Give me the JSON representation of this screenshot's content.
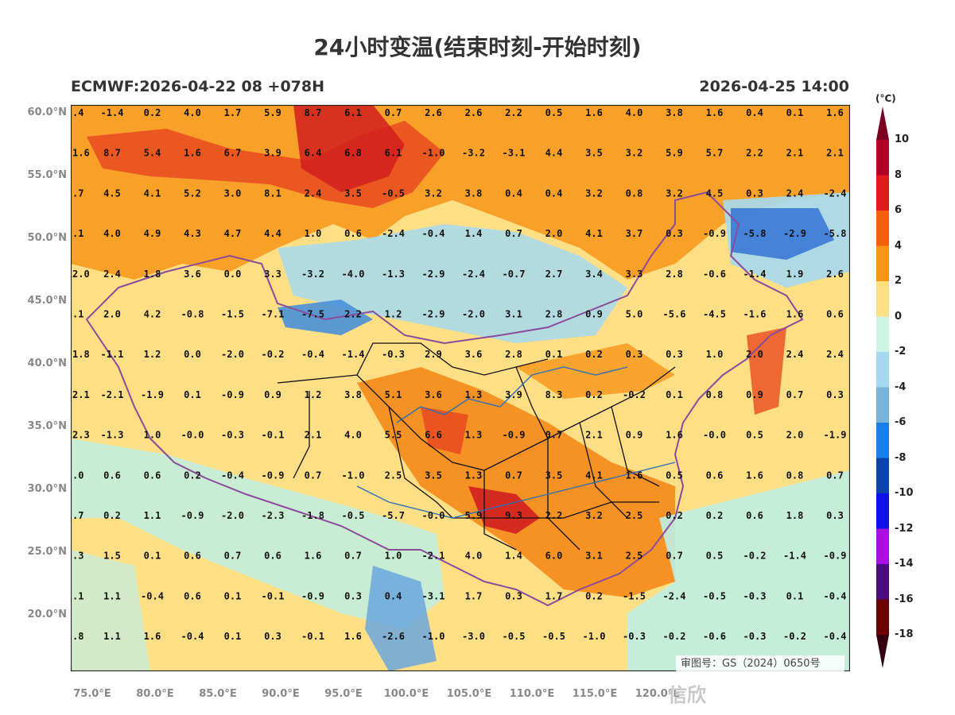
{
  "title": "24小时变温(结束时刻-开始时刻)",
  "model_run": "ECMWF:2026-04-22 08 +078H",
  "valid_time": "2026-04-25 14:00",
  "latitude_labels": [
    "60.0°N",
    "55.0°N",
    "50.0°N",
    "45.0°N",
    "40.0°N",
    "35.0°N",
    "30.0°N",
    "25.0°N",
    "20.0°N"
  ],
  "longitude_labels": [
    "75.0°E",
    "80.0°E",
    "85.0°E",
    "90.0°E",
    "95.0°E",
    "100.0°E",
    "105.0°E",
    "110.0°E",
    "115.0°E",
    "120.0°E"
  ],
  "legend": {
    "unit": "(°C)",
    "labels": [
      "10",
      "8",
      "6",
      "4",
      "2",
      "0",
      "-2",
      "-4",
      "-6",
      "-8",
      "-10",
      "-12",
      "-14",
      "-16",
      "-18"
    ],
    "colors": [
      "#7a0022",
      "#b10026",
      "#e31a1c",
      "#f06010",
      "#f79518",
      "#fedf86",
      "#cdf5e6",
      "#a6d9ef",
      "#78b4d9",
      "#1c7de6",
      "#0a46a8",
      "#1010ef",
      "#aa10dd",
      "#4b0c80",
      "#6f0000",
      "#340010"
    ]
  },
  "grid_values": [
    [
      "-1.4",
      "0.2",
      "4.0",
      "1.7",
      "5.9",
      "8.7",
      "6.1",
      "0.7",
      "2.6",
      "2.6",
      "2.2",
      "0.5",
      "1.6",
      "4.0",
      "3.8",
      "1.6",
      "0.4",
      "0.1",
      "1.6"
    ],
    [
      "8.7",
      "5.4",
      "1.6",
      "6.7",
      "3.9",
      "6.4",
      "6.8",
      "6.1",
      "-1.0",
      "-3.2",
      "-3.1",
      "4.4",
      "3.5",
      "3.2",
      "5.9",
      "5.7",
      "2.2",
      "2.1",
      "2.1"
    ],
    [
      "4.5",
      "4.1",
      "5.2",
      "3.0",
      "8.1",
      "2.4",
      "3.5",
      "-0.5",
      "3.2",
      "3.8",
      "0.4",
      "0.4",
      "3.2",
      "0.8",
      "3.2",
      "4.5",
      "0.3",
      "2.4",
      "-2.4"
    ],
    [
      "4.0",
      "4.9",
      "4.3",
      "4.7",
      "4.4",
      "1.0",
      "0.6",
      "-2.4",
      "-0.4",
      "1.4",
      "0.7",
      "2.0",
      "4.1",
      "3.7",
      "0.3",
      "-0.9",
      "-5.8",
      "-2.9",
      "-5.8"
    ],
    [
      "2.4",
      "1.8",
      "3.6",
      "0.0",
      "3.3",
      "-3.2",
      "-4.0",
      "-1.3",
      "-2.9",
      "-2.4",
      "-0.7",
      "2.7",
      "3.4",
      "3.3",
      "2.8",
      "-0.6",
      "-1.4",
      "1.9",
      "2.6"
    ],
    [
      "2.0",
      "4.2",
      "-0.8",
      "-1.5",
      "-7.1",
      "-7.5",
      "2.2",
      "1.2",
      "-2.9",
      "-2.0",
      "3.1",
      "2.8",
      "0.9",
      "5.0",
      "-5.6",
      "-4.5",
      "-1.6",
      "1.6",
      "0.6"
    ],
    [
      "-1.1",
      "1.2",
      "0.0",
      "-2.0",
      "-0.2",
      "-0.4",
      "-1.4",
      "-0.3",
      "2.9",
      "3.6",
      "2.8",
      "0.1",
      "0.2",
      "0.3",
      "0.3",
      "1.0",
      "2.0",
      "2.4",
      "2.4"
    ],
    [
      "-2.1",
      "-1.9",
      "0.1",
      "-0.9",
      "0.9",
      "1.2",
      "3.8",
      "5.1",
      "3.6",
      "1.3",
      "3.9",
      "8.3",
      "0.2",
      "-0.2",
      "0.1",
      "0.8",
      "0.9",
      "0.7",
      "0.3"
    ],
    [
      "-1.3",
      "1.0",
      "-0.0",
      "-0.3",
      "-0.1",
      "2.1",
      "4.0",
      "5.5",
      "6.6",
      "1.3",
      "-0.9",
      "0.7",
      "2.1",
      "0.9",
      "1.6",
      "-0.0",
      "0.5",
      "2.0",
      "-1.9"
    ],
    [
      "0.6",
      "0.6",
      "0.2",
      "-0.4",
      "-0.9",
      "0.7",
      "-1.0",
      "2.5",
      "3.5",
      "1.3",
      "0.7",
      "3.5",
      "4.1",
      "1.6",
      "0.5",
      "0.6",
      "1.6",
      "0.8",
      "0.7"
    ],
    [
      "0.2",
      "1.1",
      "-0.9",
      "-2.0",
      "-2.3",
      "-1.8",
      "-0.5",
      "-5.7",
      "-0.0",
      "5.9",
      "9.3",
      "2.2",
      "3.2",
      "2.5",
      "0.2",
      "0.2",
      "0.6",
      "1.8",
      "0.3"
    ],
    [
      "1.5",
      "0.1",
      "0.6",
      "0.7",
      "0.6",
      "1.6",
      "0.7",
      "1.0",
      "-2.1",
      "4.0",
      "1.4",
      "6.0",
      "3.1",
      "2.5",
      "0.7",
      "0.5",
      "-0.2",
      "-1.4",
      "-0.9"
    ],
    [
      "1.1",
      "-0.4",
      "0.6",
      "0.1",
      "-0.1",
      "-0.9",
      "0.3",
      "0.4",
      "-3.1",
      "1.7",
      "0.3",
      "1.7",
      "0.2",
      "-1.5",
      "-2.4",
      "-0.5",
      "-0.3",
      "0.1",
      "-0.4"
    ],
    [
      "1.1",
      "1.6",
      "-0.4",
      "0.1",
      "0.3",
      "-0.1",
      "1.6",
      "-2.6",
      "-1.0",
      "-3.0",
      "-0.5",
      "-0.5",
      "-1.0",
      "-0.3",
      "-0.2",
      "-0.6",
      "-0.3",
      "-0.2",
      "-0.4"
    ]
  ],
  "edge_values": [
    ".4",
    "1.6",
    ".7",
    ".1",
    "2.0",
    ".1",
    "1.8",
    "2.1",
    "2.3",
    ".0",
    ".7",
    ".3",
    ".1",
    ".8"
  ],
  "approval_number": "审图号：GS（2024）0650号",
  "watermark": "信欣"
}
